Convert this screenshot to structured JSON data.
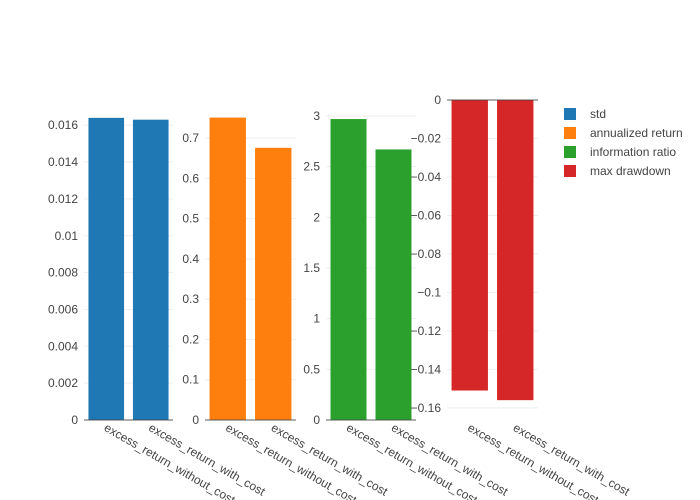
{
  "chart_data": {
    "type": "bar",
    "layout": "4 side-by-side subplots, shared legend",
    "grid": true,
    "legend_position": "top-right",
    "subplots": [
      {
        "series": "std",
        "color": "#1f77b4",
        "categories": [
          "excess_return_without_cost",
          "excess_return_with_cost"
        ],
        "values": [
          0.0164,
          0.0163
        ],
        "ylim": [
          0,
          0.0165
        ],
        "yticks": [
          0,
          0.002,
          0.004,
          0.006,
          0.008,
          0.01,
          0.012,
          0.014,
          0.016
        ],
        "ytick_labels": [
          "0",
          "0.002",
          "0.004",
          "0.006",
          "0.008",
          "0.01",
          "0.012",
          "0.014",
          "0.016"
        ]
      },
      {
        "series": "annualized return",
        "color": "#ff7f0e",
        "categories": [
          "excess_return_without_cost",
          "excess_return_with_cost"
        ],
        "values": [
          0.751,
          0.676
        ],
        "ylim": [
          0,
          0.755
        ],
        "yticks": [
          0,
          0.1,
          0.2,
          0.3,
          0.4,
          0.5,
          0.6,
          0.7
        ],
        "ytick_labels": [
          "0",
          "0.1",
          "0.2",
          "0.3",
          "0.4",
          "0.5",
          "0.6",
          "0.7"
        ]
      },
      {
        "series": "information ratio",
        "color": "#2ca02c",
        "categories": [
          "excess_return_without_cost",
          "excess_return_with_cost"
        ],
        "values": [
          2.97,
          2.67
        ],
        "ylim": [
          0,
          3.0
        ],
        "yticks": [
          0,
          0.5,
          1,
          1.5,
          2,
          2.5,
          3
        ],
        "ytick_labels": [
          "0",
          "0.5",
          "1",
          "1.5",
          "2",
          "2.5",
          "3"
        ]
      },
      {
        "series": "max drawdown",
        "color": "#d62728",
        "categories": [
          "excess_return_without_cost",
          "excess_return_with_cost"
        ],
        "values": [
          -0.151,
          -0.156
        ],
        "ylim": [
          -0.158,
          0
        ],
        "yticks": [
          0,
          -0.02,
          -0.04,
          -0.06,
          -0.08,
          -0.1,
          -0.12,
          -0.14,
          -0.16
        ],
        "ytick_labels": [
          "0",
          "−0.02",
          "−0.04",
          "−0.06",
          "−0.08",
          "−0.1",
          "−0.12",
          "−0.14",
          "−0.16"
        ]
      }
    ],
    "legend": [
      {
        "label": "std",
        "color": "#1f77b4"
      },
      {
        "label": "annualized return",
        "color": "#ff7f0e"
      },
      {
        "label": "information ratio",
        "color": "#2ca02c"
      },
      {
        "label": "max drawdown",
        "color": "#d62728"
      }
    ]
  }
}
